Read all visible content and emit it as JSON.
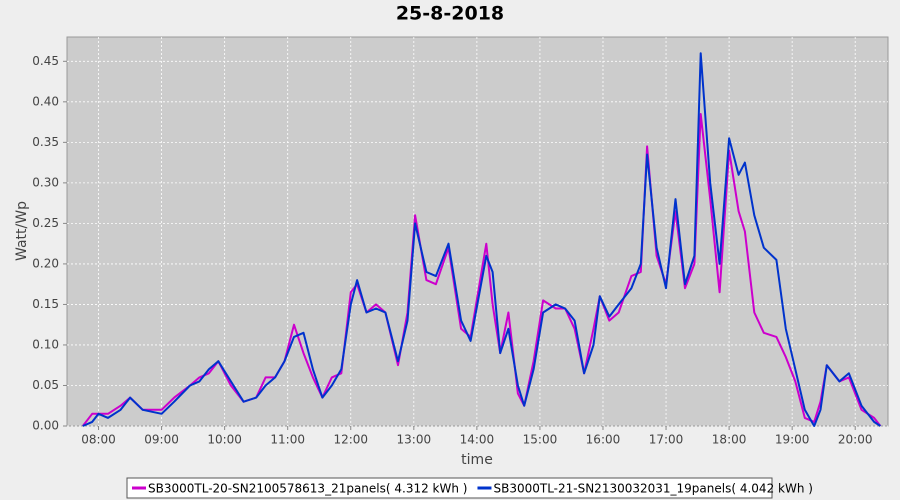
{
  "chart_data": {
    "type": "line",
    "title": "25-8-2018",
    "x_label": "time",
    "y_label": "Watt/Wp",
    "x": [
      7.75,
      7.9,
      8.0,
      8.15,
      8.35,
      8.5,
      8.7,
      9.0,
      9.2,
      9.45,
      9.6,
      9.75,
      9.9,
      10.1,
      10.3,
      10.5,
      10.65,
      10.8,
      10.95,
      11.1,
      11.25,
      11.4,
      11.55,
      11.7,
      11.85,
      12.0,
      12.1,
      12.25,
      12.4,
      12.55,
      12.75,
      12.9,
      13.02,
      13.2,
      13.35,
      13.55,
      13.75,
      13.9,
      14.15,
      14.25,
      14.37,
      14.5,
      14.65,
      14.75,
      14.9,
      15.05,
      15.25,
      15.4,
      15.55,
      15.7,
      15.85,
      15.95,
      16.1,
      16.25,
      16.45,
      16.6,
      16.7,
      16.85,
      17.0,
      17.15,
      17.3,
      17.45,
      17.55,
      17.7,
      17.85,
      18.0,
      18.15,
      18.25,
      18.4,
      18.55,
      18.75,
      18.9,
      19.05,
      19.2,
      19.35,
      19.45,
      19.55,
      19.75,
      19.9,
      20.1,
      20.3,
      20.4
    ],
    "series": [
      {
        "name": "SB3000TL-20-SN2100578613_21panels( 4.312 kWh )",
        "color": "#cc00cc",
        "values": [
          0.0,
          0.015,
          0.015,
          0.015,
          0.025,
          0.035,
          0.02,
          0.02,
          0.035,
          0.05,
          0.06,
          0.065,
          0.08,
          0.05,
          0.03,
          0.035,
          0.06,
          0.06,
          0.08,
          0.125,
          0.09,
          0.06,
          0.035,
          0.06,
          0.065,
          0.165,
          0.175,
          0.14,
          0.15,
          0.14,
          0.075,
          0.14,
          0.26,
          0.18,
          0.175,
          0.22,
          0.12,
          0.11,
          0.225,
          0.15,
          0.09,
          0.14,
          0.04,
          0.025,
          0.08,
          0.155,
          0.145,
          0.145,
          0.12,
          0.065,
          0.12,
          0.16,
          0.13,
          0.14,
          0.185,
          0.19,
          0.345,
          0.21,
          0.175,
          0.265,
          0.17,
          0.2,
          0.385,
          0.28,
          0.165,
          0.34,
          0.265,
          0.24,
          0.14,
          0.115,
          0.11,
          0.085,
          0.055,
          0.01,
          0.005,
          0.03,
          0.075,
          0.055,
          0.06,
          0.02,
          0.01,
          0.0
        ]
      },
      {
        "name": "SB3000TL-21-SN2130032031_19panels( 4.042 kWh )",
        "color": "#0033cc",
        "values": [
          0.0,
          0.005,
          0.015,
          0.01,
          0.02,
          0.035,
          0.02,
          0.015,
          0.03,
          0.05,
          0.055,
          0.07,
          0.08,
          0.055,
          0.03,
          0.035,
          0.05,
          0.06,
          0.08,
          0.11,
          0.115,
          0.07,
          0.035,
          0.05,
          0.07,
          0.15,
          0.18,
          0.14,
          0.145,
          0.14,
          0.08,
          0.13,
          0.25,
          0.19,
          0.185,
          0.225,
          0.13,
          0.105,
          0.21,
          0.19,
          0.09,
          0.12,
          0.05,
          0.025,
          0.07,
          0.14,
          0.15,
          0.145,
          0.13,
          0.065,
          0.1,
          0.16,
          0.135,
          0.15,
          0.17,
          0.2,
          0.335,
          0.22,
          0.17,
          0.28,
          0.175,
          0.21,
          0.46,
          0.3,
          0.2,
          0.355,
          0.31,
          0.325,
          0.26,
          0.22,
          0.205,
          0.12,
          0.07,
          0.02,
          0.0,
          0.02,
          0.075,
          0.055,
          0.065,
          0.025,
          0.005,
          0.0
        ]
      }
    ],
    "xlim": [
      7.5,
      20.52
    ],
    "xticks": [
      {
        "value": 8,
        "label": "08:00"
      },
      {
        "value": 9,
        "label": "09:00"
      },
      {
        "value": 10,
        "label": "10:00"
      },
      {
        "value": 11,
        "label": "11:00"
      },
      {
        "value": 12,
        "label": "12:00"
      },
      {
        "value": 13,
        "label": "13:00"
      },
      {
        "value": 14,
        "label": "14:00"
      },
      {
        "value": 15,
        "label": "15:00"
      },
      {
        "value": 16,
        "label": "16:00"
      },
      {
        "value": 17,
        "label": "17:00"
      },
      {
        "value": 18,
        "label": "18:00"
      },
      {
        "value": 19,
        "label": "19:00"
      },
      {
        "value": 20,
        "label": "20:00"
      }
    ],
    "ylim": [
      0,
      0.48
    ],
    "yticks": [
      {
        "value": 0,
        "label": "0.00"
      },
      {
        "value": 0.05,
        "label": "0.05"
      },
      {
        "value": 0.1,
        "label": "0.10"
      },
      {
        "value": 0.15,
        "label": "0.15"
      },
      {
        "value": 0.2,
        "label": "0.20"
      },
      {
        "value": 0.25,
        "label": "0.25"
      },
      {
        "value": 0.3,
        "label": "0.30"
      },
      {
        "value": 0.35,
        "label": "0.35"
      },
      {
        "value": 0.4,
        "label": "0.40"
      },
      {
        "value": 0.45,
        "label": "0.45"
      }
    ],
    "grid": true,
    "legend": "bottom"
  }
}
